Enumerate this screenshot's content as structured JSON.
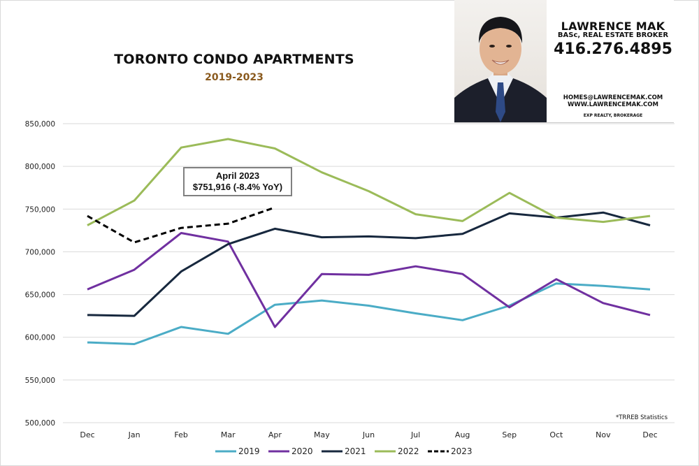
{
  "header": {
    "title": "TORONTO CONDO APARTMENTS",
    "subtitle": "2019-2023"
  },
  "agent_card": {
    "photo": "agent-headshot",
    "name": "LAWRENCE MAK",
    "credentials": "BASc, REAL ESTATE BROKER",
    "phone": "416.276.4895",
    "email": "HOMES@LAWRENCEMAK.COM",
    "website": "WWW.LAWRENCEMAK.COM",
    "brokerage": "EXP REALTY, BROKERAGE"
  },
  "callout": {
    "line1": "April 2023",
    "line2": "$751,916  (-8.4%  YoY)"
  },
  "source_note": "*TRREB Statistics",
  "chart_data": {
    "type": "line",
    "title": "TORONTO CONDO APARTMENTS",
    "subtitle": "2019-2023",
    "xlabel": "",
    "ylabel": "",
    "categories": [
      "Dec",
      "Jan",
      "Feb",
      "Mar",
      "Apr",
      "May",
      "Jun",
      "Jul",
      "Aug",
      "Sep",
      "Oct",
      "Nov",
      "Dec"
    ],
    "ylim": [
      500000,
      850000
    ],
    "yticks": [
      500000,
      550000,
      600000,
      650000,
      700000,
      750000,
      800000,
      850000
    ],
    "ytick_labels": [
      "500,000",
      "550,000",
      "600,000",
      "650,000",
      "700,000",
      "750,000",
      "800,000",
      "850,000"
    ],
    "grid": true,
    "legend_position": "bottom",
    "series": [
      {
        "name": "2019",
        "color": "#4bacc6",
        "dashed": false,
        "values": [
          594000,
          592000,
          612000,
          604000,
          638000,
          643000,
          637000,
          628000,
          620000,
          637000,
          663000,
          660000,
          656000
        ]
      },
      {
        "name": "2020",
        "color": "#7030a0",
        "dashed": false,
        "values": [
          656000,
          679000,
          722000,
          712000,
          612000,
          674000,
          673000,
          683000,
          674000,
          635000,
          668000,
          640000,
          626000
        ]
      },
      {
        "name": "2021",
        "color": "#17283e",
        "dashed": false,
        "values": [
          626000,
          625000,
          677000,
          709000,
          727000,
          717000,
          718000,
          716000,
          721000,
          745000,
          740000,
          746000,
          731000
        ]
      },
      {
        "name": "2022",
        "color": "#9bbb59",
        "dashed": false,
        "values": [
          731000,
          760000,
          822000,
          832000,
          821000,
          793000,
          771000,
          744000,
          736000,
          769000,
          740000,
          735000,
          742000
        ]
      },
      {
        "name": "2023",
        "color": "#000000",
        "dashed": true,
        "values": [
          742000,
          711000,
          728000,
          733000,
          751916,
          null,
          null,
          null,
          null,
          null,
          null,
          null,
          null
        ]
      }
    ],
    "annotations": [
      "April 2023 $751,916 (-8.4% YoY)",
      "*TRREB Statistics"
    ]
  }
}
